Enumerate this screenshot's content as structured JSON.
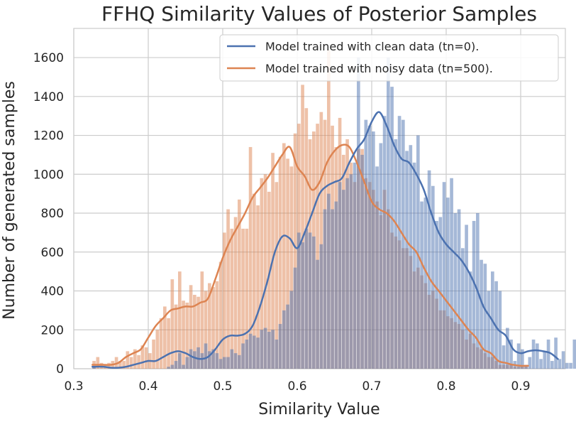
{
  "chart_data": {
    "type": "histogram",
    "title": "FFHQ Similarity Values of Posterior Samples",
    "xlabel": "Similarity Value",
    "ylabel": "Number of generated samples",
    "xlim": [
      0.3,
      0.96
    ],
    "ylim": [
      0,
      1750
    ],
    "grid": true,
    "xticks": [
      0.3,
      0.4,
      0.5,
      0.6,
      0.7,
      0.8,
      0.9
    ],
    "yticks": [
      0,
      200,
      400,
      600,
      800,
      1000,
      1200,
      1400,
      1600
    ],
    "xtick_labels": [
      "0.3",
      "0.4",
      "0.5",
      "0.6",
      "0.7",
      "0.8",
      "0.9"
    ],
    "ytick_labels": [
      "0",
      "200",
      "400",
      "600",
      "800",
      "1000",
      "1200",
      "1400",
      "1600"
    ],
    "legend_position": "top-right",
    "series": [
      {
        "name": "Model trained with clean data (tn=0).",
        "color": "#4c72b0",
        "bin_start": 0.325,
        "bin_width": 0.005,
        "counts": [
          10,
          0,
          0,
          0,
          0,
          0,
          0,
          0,
          0,
          0,
          0,
          0,
          0,
          0,
          0,
          0,
          0,
          0,
          0,
          0,
          10,
          20,
          40,
          80,
          20,
          60,
          100,
          90,
          110,
          80,
          130,
          90,
          100,
          80,
          50,
          60,
          60,
          100,
          80,
          70,
          130,
          150,
          180,
          170,
          160,
          200,
          210,
          190,
          200,
          150,
          230,
          300,
          330,
          400,
          520,
          700,
          650,
          720,
          700,
          680,
          560,
          640,
          820,
          900,
          820,
          860,
          960,
          920,
          980,
          1000,
          1060,
          1600,
          1100,
          1280,
          1250,
          1220,
          1040,
          1160,
          1300,
          1600,
          1450,
          1180,
          1300,
          1280,
          1120,
          1150,
          1060,
          1200,
          860,
          880,
          1020,
          940,
          760,
          780,
          960,
          880,
          980,
          800,
          820,
          620,
          740,
          500,
          760,
          800,
          560,
          540,
          400,
          500,
          450,
          400,
          120,
          210,
          150,
          40,
          130,
          100,
          20,
          60,
          150,
          130,
          50,
          90,
          150,
          40,
          160,
          50,
          90,
          30,
          30,
          150
        ],
        "kde_x": [
          0.325,
          0.34,
          0.35,
          0.36,
          0.37,
          0.38,
          0.39,
          0.4,
          0.41,
          0.42,
          0.43,
          0.44,
          0.45,
          0.46,
          0.47,
          0.48,
          0.49,
          0.5,
          0.51,
          0.52,
          0.53,
          0.54,
          0.55,
          0.56,
          0.57,
          0.58,
          0.59,
          0.6,
          0.61,
          0.62,
          0.63,
          0.64,
          0.65,
          0.66,
          0.67,
          0.68,
          0.69,
          0.7,
          0.71,
          0.72,
          0.73,
          0.74,
          0.75,
          0.76,
          0.77,
          0.78,
          0.79,
          0.8,
          0.81,
          0.82,
          0.83,
          0.84,
          0.85,
          0.86,
          0.87,
          0.88,
          0.89,
          0.9,
          0.91,
          0.92,
          0.93,
          0.94,
          0.95
        ],
        "kde_y": [
          10,
          10,
          5,
          5,
          10,
          20,
          30,
          40,
          40,
          60,
          80,
          90,
          80,
          60,
          50,
          60,
          100,
          150,
          170,
          170,
          180,
          220,
          320,
          450,
          600,
          680,
          670,
          620,
          700,
          800,
          900,
          940,
          960,
          980,
          1060,
          1130,
          1180,
          1270,
          1320,
          1250,
          1150,
          1080,
          1060,
          1000,
          920,
          800,
          700,
          640,
          600,
          560,
          500,
          420,
          320,
          260,
          200,
          170,
          100,
          80,
          90,
          95,
          90,
          80,
          50
        ]
      },
      {
        "name": "Model trained with noisy data (tn=500).",
        "color": "#dd8452",
        "bin_start": 0.325,
        "bin_width": 0.005,
        "counts": [
          40,
          60,
          30,
          20,
          30,
          40,
          60,
          40,
          40,
          90,
          60,
          100,
          70,
          120,
          110,
          80,
          150,
          200,
          260,
          320,
          260,
          460,
          330,
          500,
          350,
          340,
          430,
          380,
          370,
          500,
          400,
          440,
          420,
          450,
          550,
          700,
          820,
          720,
          780,
          870,
          720,
          720,
          1140,
          900,
          840,
          980,
          1000,
          910,
          1110,
          960,
          1090,
          1160,
          1080,
          1040,
          1210,
          1260,
          1460,
          1340,
          1180,
          1220,
          1260,
          1320,
          1280,
          1640,
          1250,
          1140,
          1290,
          1100,
          1180,
          1060,
          960,
          1130,
          1130,
          980,
          960,
          920,
          860,
          790,
          920,
          820,
          700,
          680,
          660,
          620,
          620,
          580,
          500,
          520,
          480,
          440,
          380,
          400,
          360,
          300,
          300,
          270,
          260,
          240,
          230,
          200,
          150,
          180,
          130,
          110,
          100,
          80,
          60,
          60,
          40,
          20,
          20,
          20,
          20,
          10,
          10,
          10,
          10
        ],
        "kde_x": [
          0.325,
          0.34,
          0.35,
          0.36,
          0.37,
          0.38,
          0.39,
          0.4,
          0.41,
          0.42,
          0.43,
          0.44,
          0.45,
          0.46,
          0.47,
          0.48,
          0.49,
          0.5,
          0.51,
          0.52,
          0.53,
          0.54,
          0.55,
          0.56,
          0.57,
          0.58,
          0.59,
          0.6,
          0.61,
          0.62,
          0.63,
          0.64,
          0.65,
          0.66,
          0.67,
          0.68,
          0.69,
          0.7,
          0.71,
          0.72,
          0.73,
          0.74,
          0.75,
          0.76,
          0.77,
          0.78,
          0.79,
          0.8,
          0.81,
          0.82,
          0.83,
          0.84,
          0.85,
          0.86,
          0.87,
          0.88,
          0.89,
          0.9,
          0.91
        ],
        "kde_y": [
          20,
          20,
          20,
          30,
          60,
          80,
          100,
          160,
          220,
          260,
          300,
          310,
          320,
          320,
          340,
          360,
          460,
          570,
          660,
          730,
          800,
          880,
          930,
          980,
          1040,
          1100,
          1140,
          1040,
          990,
          920,
          960,
          1060,
          1120,
          1150,
          1140,
          1060,
          960,
          860,
          820,
          800,
          760,
          700,
          640,
          600,
          520,
          450,
          400,
          350,
          300,
          250,
          200,
          160,
          100,
          80,
          40,
          30,
          20,
          15,
          15
        ]
      }
    ]
  }
}
